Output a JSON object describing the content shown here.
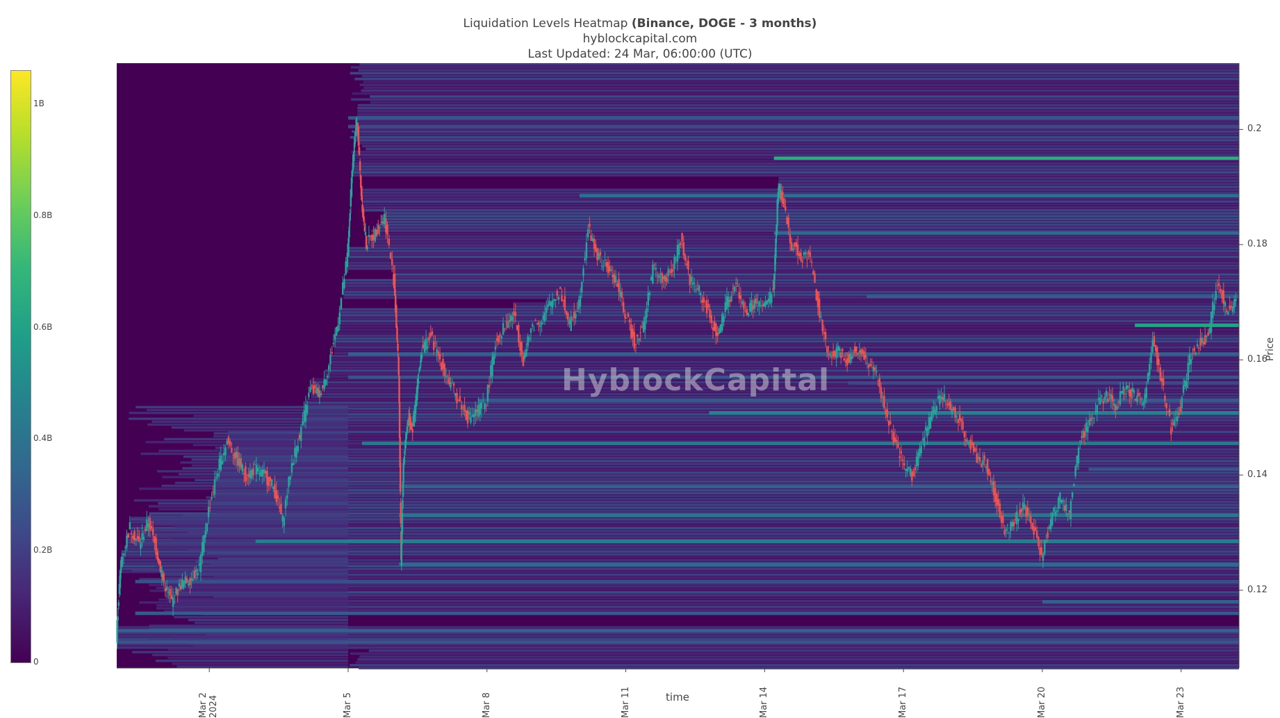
{
  "header": {
    "title_prefix": "Liquidation Levels Heatmap ",
    "title_bold": "(Binance, DOGE - 3 months)",
    "site": "hyblockcapital.com",
    "updated": "Last Updated: 24 Mar, 06:00:00 (UTC)"
  },
  "watermark": "HyblockCapital",
  "colorbar": {
    "ticks": [
      {
        "label": "1B",
        "value": 1.0
      },
      {
        "label": "0.8B",
        "value": 0.8
      },
      {
        "label": "0.6B",
        "value": 0.6
      },
      {
        "label": "0.4B",
        "value": 0.4
      },
      {
        "label": "0.2B",
        "value": 0.2
      },
      {
        "label": "0",
        "value": 0
      }
    ],
    "max": 1.06,
    "colors": [
      "#440154",
      "#482878",
      "#3e4989",
      "#31688e",
      "#26828e",
      "#1f9e89",
      "#35b779",
      "#6ece58",
      "#b5de2b",
      "#fde725"
    ]
  },
  "chart_data": {
    "type": "heatmap",
    "title": "Liquidation Levels Heatmap (Binance, DOGE - 3 months)",
    "xlabel": "time",
    "ylabel": "Price",
    "x_tick_labels": [
      "Mar 2\n2024",
      "Mar 5",
      "Mar 8",
      "Mar 11",
      "Mar 14",
      "Mar 17",
      "Mar 20",
      "Mar 23"
    ],
    "x_tick_days": [
      2,
      5,
      8,
      11,
      14,
      17,
      20,
      23
    ],
    "xlim_days": [
      0.0,
      24.25
    ],
    "y_ticks": [
      0.12,
      0.14,
      0.16,
      0.18,
      0.2
    ],
    "y_tick_labels": [
      "0.12",
      "0.14",
      "0.16",
      "0.18",
      "0.2"
    ],
    "ylim": [
      0.1065,
      0.2115
    ],
    "colorscale": "Viridis",
    "heat_data_start_day": 5.0,
    "price_path": [
      [
        0.0,
        0.112
      ],
      [
        0.1,
        0.125
      ],
      [
        0.3,
        0.131
      ],
      [
        0.5,
        0.128
      ],
      [
        0.7,
        0.132
      ],
      [
        0.9,
        0.126
      ],
      [
        1.0,
        0.122
      ],
      [
        1.2,
        0.118
      ],
      [
        1.4,
        0.121
      ],
      [
        1.6,
        0.122
      ],
      [
        1.8,
        0.124
      ],
      [
        2.0,
        0.134
      ],
      [
        2.2,
        0.141
      ],
      [
        2.4,
        0.146
      ],
      [
        2.6,
        0.143
      ],
      [
        2.8,
        0.14
      ],
      [
        3.0,
        0.141
      ],
      [
        3.2,
        0.14
      ],
      [
        3.4,
        0.138
      ],
      [
        3.6,
        0.132
      ],
      [
        3.8,
        0.142
      ],
      [
        4.0,
        0.148
      ],
      [
        4.2,
        0.155
      ],
      [
        4.4,
        0.154
      ],
      [
        4.6,
        0.159
      ],
      [
        4.8,
        0.167
      ],
      [
        5.0,
        0.178
      ],
      [
        5.1,
        0.194
      ],
      [
        5.2,
        0.202
      ],
      [
        5.3,
        0.188
      ],
      [
        5.4,
        0.18
      ],
      [
        5.6,
        0.182
      ],
      [
        5.8,
        0.185
      ],
      [
        6.0,
        0.174
      ],
      [
        6.1,
        0.158
      ],
      [
        6.15,
        0.125
      ],
      [
        6.2,
        0.142
      ],
      [
        6.3,
        0.15
      ],
      [
        6.4,
        0.148
      ],
      [
        6.5,
        0.155
      ],
      [
        6.6,
        0.162
      ],
      [
        6.8,
        0.164
      ],
      [
        7.0,
        0.16
      ],
      [
        7.2,
        0.156
      ],
      [
        7.4,
        0.153
      ],
      [
        7.6,
        0.15
      ],
      [
        7.8,
        0.151
      ],
      [
        8.0,
        0.153
      ],
      [
        8.2,
        0.163
      ],
      [
        8.4,
        0.166
      ],
      [
        8.6,
        0.168
      ],
      [
        8.8,
        0.16
      ],
      [
        9.0,
        0.166
      ],
      [
        9.2,
        0.167
      ],
      [
        9.4,
        0.17
      ],
      [
        9.6,
        0.172
      ],
      [
        9.8,
        0.166
      ],
      [
        10.0,
        0.17
      ],
      [
        10.2,
        0.183
      ],
      [
        10.4,
        0.178
      ],
      [
        10.6,
        0.176
      ],
      [
        10.8,
        0.174
      ],
      [
        11.0,
        0.168
      ],
      [
        11.2,
        0.163
      ],
      [
        11.4,
        0.166
      ],
      [
        11.6,
        0.176
      ],
      [
        11.8,
        0.174
      ],
      [
        12.0,
        0.175
      ],
      [
        12.2,
        0.181
      ],
      [
        12.4,
        0.174
      ],
      [
        12.6,
        0.172
      ],
      [
        12.8,
        0.168
      ],
      [
        13.0,
        0.164
      ],
      [
        13.2,
        0.17
      ],
      [
        13.4,
        0.173
      ],
      [
        13.6,
        0.168
      ],
      [
        13.8,
        0.17
      ],
      [
        14.0,
        0.169
      ],
      [
        14.2,
        0.172
      ],
      [
        14.3,
        0.19
      ],
      [
        14.4,
        0.188
      ],
      [
        14.6,
        0.18
      ],
      [
        14.8,
        0.178
      ],
      [
        15.0,
        0.178
      ],
      [
        15.2,
        0.168
      ],
      [
        15.4,
        0.16
      ],
      [
        15.6,
        0.162
      ],
      [
        15.8,
        0.16
      ],
      [
        16.0,
        0.162
      ],
      [
        16.2,
        0.16
      ],
      [
        16.4,
        0.158
      ],
      [
        16.6,
        0.152
      ],
      [
        16.8,
        0.146
      ],
      [
        17.0,
        0.142
      ],
      [
        17.2,
        0.14
      ],
      [
        17.4,
        0.145
      ],
      [
        17.6,
        0.15
      ],
      [
        17.8,
        0.154
      ],
      [
        18.0,
        0.152
      ],
      [
        18.2,
        0.15
      ],
      [
        18.4,
        0.146
      ],
      [
        18.6,
        0.143
      ],
      [
        18.8,
        0.142
      ],
      [
        19.0,
        0.136
      ],
      [
        19.2,
        0.13
      ],
      [
        19.4,
        0.132
      ],
      [
        19.6,
        0.135
      ],
      [
        19.8,
        0.131
      ],
      [
        20.0,
        0.126
      ],
      [
        20.2,
        0.132
      ],
      [
        20.4,
        0.136
      ],
      [
        20.6,
        0.133
      ],
      [
        20.8,
        0.145
      ],
      [
        21.0,
        0.149
      ],
      [
        21.2,
        0.152
      ],
      [
        21.4,
        0.154
      ],
      [
        21.6,
        0.152
      ],
      [
        21.8,
        0.155
      ],
      [
        22.0,
        0.154
      ],
      [
        22.2,
        0.152
      ],
      [
        22.4,
        0.164
      ],
      [
        22.6,
        0.156
      ],
      [
        22.8,
        0.148
      ],
      [
        23.0,
        0.152
      ],
      [
        23.2,
        0.16
      ],
      [
        23.4,
        0.163
      ],
      [
        23.6,
        0.164
      ],
      [
        23.8,
        0.174
      ],
      [
        24.0,
        0.168
      ],
      [
        24.2,
        0.17
      ]
    ],
    "liquidation_bands": [
      {
        "price": 0.195,
        "start": 14.2,
        "intensity": 0.62
      },
      {
        "price": 0.1885,
        "start": 10.0,
        "intensity": 0.36
      },
      {
        "price": 0.182,
        "start": 14.2,
        "intensity": 0.34
      },
      {
        "price": 0.166,
        "start": 22.0,
        "intensity": 0.58
      },
      {
        "price": 0.161,
        "start": 5.0,
        "intensity": 0.3
      },
      {
        "price": 0.157,
        "start": 5.0,
        "intensity": 0.26
      },
      {
        "price": 0.153,
        "start": 7.8,
        "intensity": 0.28
      },
      {
        "price": 0.1508,
        "start": 12.8,
        "intensity": 0.44
      },
      {
        "price": 0.1455,
        "start": 5.3,
        "intensity": 0.4
      },
      {
        "price": 0.138,
        "start": 6.1,
        "intensity": 0.3
      },
      {
        "price": 0.133,
        "start": 6.1,
        "intensity": 0.38
      },
      {
        "price": 0.1285,
        "start": 3.0,
        "intensity": 0.42
      },
      {
        "price": 0.1245,
        "start": 6.1,
        "intensity": 0.34
      },
      {
        "price": 0.1215,
        "start": 0.4,
        "intensity": 0.24
      },
      {
        "price": 0.116,
        "start": 0.4,
        "intensity": 0.28
      },
      {
        "price": 0.113,
        "start": 0.0,
        "intensity": 0.3
      },
      {
        "price": 0.111,
        "start": 0.0,
        "intensity": 0.26
      },
      {
        "price": 0.202,
        "start": 5.0,
        "intensity": 0.26
      },
      {
        "price": 0.2005,
        "start": 5.0,
        "intensity": 0.22
      },
      {
        "price": 0.171,
        "start": 16.2,
        "intensity": 0.28
      },
      {
        "price": 0.156,
        "start": 15.8,
        "intensity": 0.22
      },
      {
        "price": 0.141,
        "start": 21.0,
        "intensity": 0.26
      },
      {
        "price": 0.118,
        "start": 20.0,
        "intensity": 0.3
      }
    ]
  }
}
